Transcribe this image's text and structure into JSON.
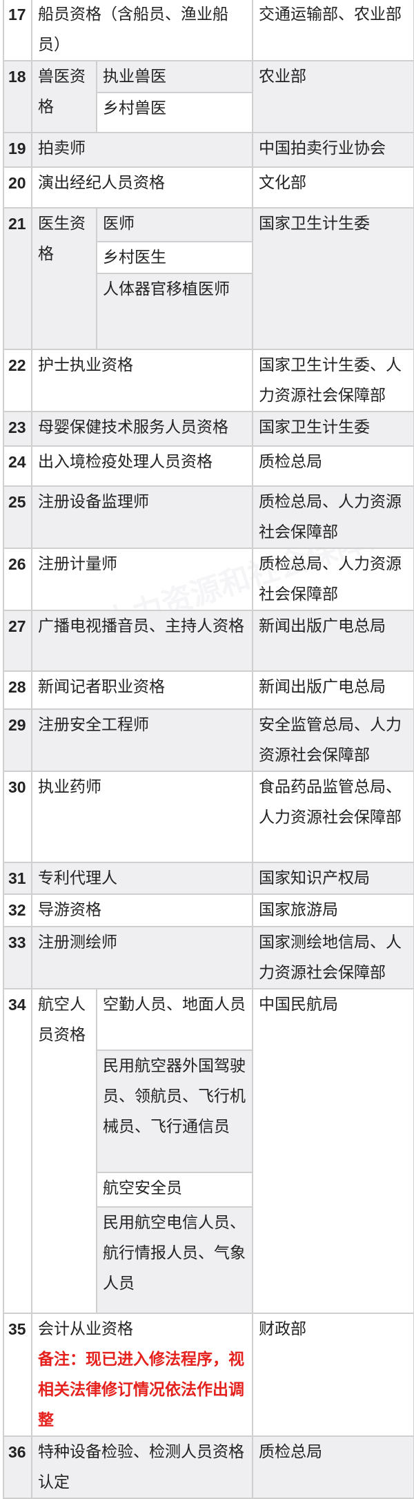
{
  "watermark": "人力资源和社会保障部",
  "rows": [
    {
      "no": "17",
      "name": "船员资格（含船员、渔业船员）",
      "dept": "交通运输部、农业部"
    },
    {
      "no": "18",
      "name": "兽医资格",
      "subs": [
        "执业兽医",
        "乡村兽医"
      ],
      "dept": "农业部"
    },
    {
      "no": "19",
      "name": "拍卖师",
      "dept": "中国拍卖行业协会"
    },
    {
      "no": "20",
      "name": "演出经纪人员资格",
      "dept": "文化部"
    },
    {
      "no": "21",
      "name": "医生资格",
      "subs": [
        "医师",
        "乡村医生",
        "人体器官移植医师"
      ],
      "dept": "国家卫生计生委"
    },
    {
      "no": "22",
      "name": "护士执业资格",
      "dept": "国家卫生计生委、人力资源社会保障部"
    },
    {
      "no": "23",
      "name": "母婴保健技术服务人员资格",
      "dept": "国家卫生计生委"
    },
    {
      "no": "24",
      "name": "出入境检疫处理人员资格",
      "dept": "质检总局"
    },
    {
      "no": "25",
      "name": "注册设备监理师",
      "dept": "质检总局、人力资源社会保障部"
    },
    {
      "no": "26",
      "name": "注册计量师",
      "dept": "质检总局、人力资源社会保障部"
    },
    {
      "no": "27",
      "name": "广播电视播音员、主持人资格",
      "dept": "新闻出版广电总局"
    },
    {
      "no": "28",
      "name": "新闻记者职业资格",
      "dept": "新闻出版广电总局"
    },
    {
      "no": "29",
      "name": "注册安全工程师",
      "dept": "安全监管总局、人力资源社会保障部"
    },
    {
      "no": "30",
      "name": "执业药师",
      "dept": "食品药品监管总局、人力资源社会保障部"
    },
    {
      "no": "31",
      "name": "专利代理人",
      "dept": "国家知识产权局"
    },
    {
      "no": "32",
      "name": "导游资格",
      "dept": "国家旅游局"
    },
    {
      "no": "33",
      "name": "注册测绘师",
      "dept": "国家测绘地信局、人力资源社会保障部"
    },
    {
      "no": "34",
      "name": "航空人员资格",
      "subs": [
        "空勤人员、地面人员",
        "民用航空器外国驾驶员、领航员、飞行机械员、飞行通信员",
        "航空安全员",
        "民用航空电信人员、航行情报人员、气象人员"
      ],
      "dept": "中国民航局"
    },
    {
      "no": "35",
      "name": "会计从业资格",
      "note": "备注：现已进入修法程序，视相关法律修订情况依法作出调整",
      "dept": "财政部"
    },
    {
      "no": "36",
      "name": "特种设备检验、检测人员资格认定",
      "dept": "质检总局"
    }
  ],
  "colors": {
    "row_alt": "#efeff1",
    "border": "#cfcfcf",
    "note": "#e5211d"
  }
}
